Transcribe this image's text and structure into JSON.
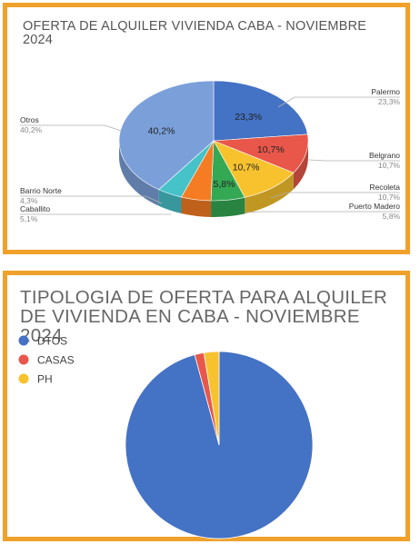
{
  "chart_data": [
    {
      "type": "pie",
      "title": "OFERTA DE ALQUILER VIVIENDA CABA - NOVIEMBRE 2024",
      "categories": [
        "Palermo",
        "Belgrano",
        "Recoleta",
        "Puerto Madero",
        "Caballito",
        "Barrio Norte",
        "Otros"
      ],
      "values": [
        23.3,
        10.7,
        10.7,
        5.8,
        5.1,
        4.3,
        40.2
      ],
      "value_labels": [
        "23,3%",
        "10,7%",
        "10,7%",
        "5,8%",
        "5,1%",
        "4,3%",
        "40,2%"
      ],
      "colors": [
        "#4472c4",
        "#e8574a",
        "#f7c22e",
        "#34a853",
        "#f57c22",
        "#46c2c9",
        "#7ba0d9"
      ],
      "inside_labels": [
        "23,3%",
        "10,7%",
        "10,7%",
        "5,8%",
        "",
        "",
        "40,2%"
      ],
      "outside_labels": [
        {
          "name": "Palermo",
          "value": "23,3%"
        },
        {
          "name": "Belgrano",
          "value": "10,7%"
        },
        {
          "name": "Recoleta",
          "value": "10,7%"
        },
        {
          "name": "Puerto Madero",
          "value": "5,8%"
        },
        {
          "name": "Caballito",
          "value": "5,1%"
        },
        {
          "name": "Barrio Norte",
          "value": "4,3%"
        },
        {
          "name": "Otros",
          "value": "40,2%"
        }
      ],
      "style": "3d"
    },
    {
      "type": "pie",
      "title": "TIPOLOGIA DE OFERTA PARA ALQUILER DE VIVIENDA EN CABA - NOVIEMBRE 2024",
      "categories": [
        "DTOS",
        "CASAS",
        "PH"
      ],
      "values": [
        95.8,
        1.6,
        2.6
      ],
      "colors": [
        "#4472c4",
        "#e8574a",
        "#f7c22e"
      ],
      "legend": "left"
    }
  ]
}
